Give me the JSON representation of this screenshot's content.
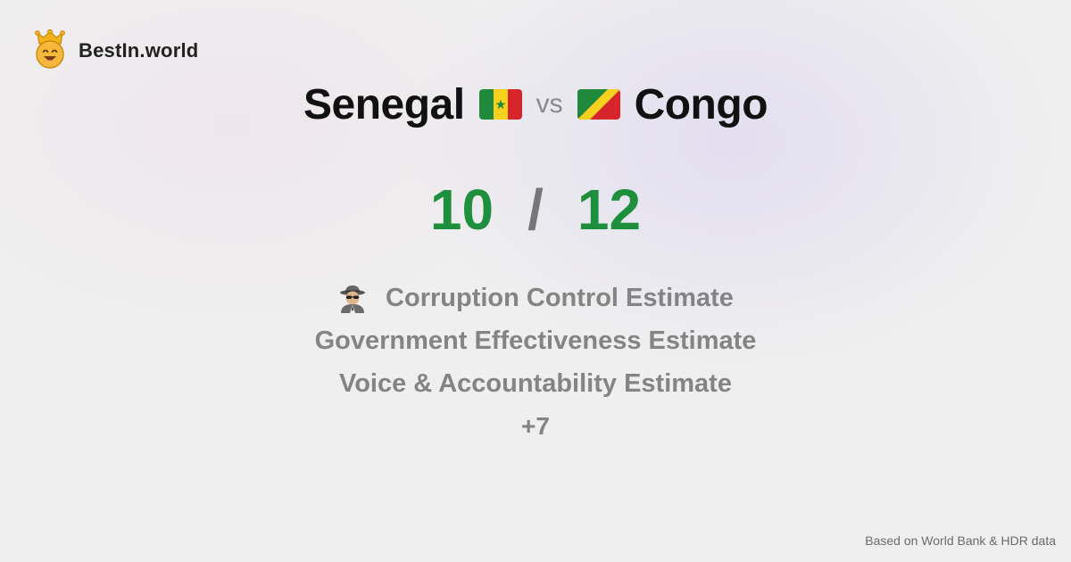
{
  "brand": {
    "name": "BestIn.world",
    "logo_icon": "crown-smiley-icon"
  },
  "comparison": {
    "left_country": "Senegal",
    "left_flag_icon": "senegal-flag-icon",
    "vs_label": "vs",
    "right_country": "Congo",
    "right_flag_icon": "congo-flag-icon"
  },
  "scores": {
    "left": "10",
    "separator": "/",
    "right": "12",
    "color": "#1e8f3c"
  },
  "metrics": {
    "icon": "spy-icon",
    "items": [
      "Corruption Control Estimate",
      "Government Effectiveness Estimate",
      "Voice & Accountability Estimate"
    ],
    "more": "+7"
  },
  "footer": {
    "source": "Based on World Bank & HDR data"
  }
}
